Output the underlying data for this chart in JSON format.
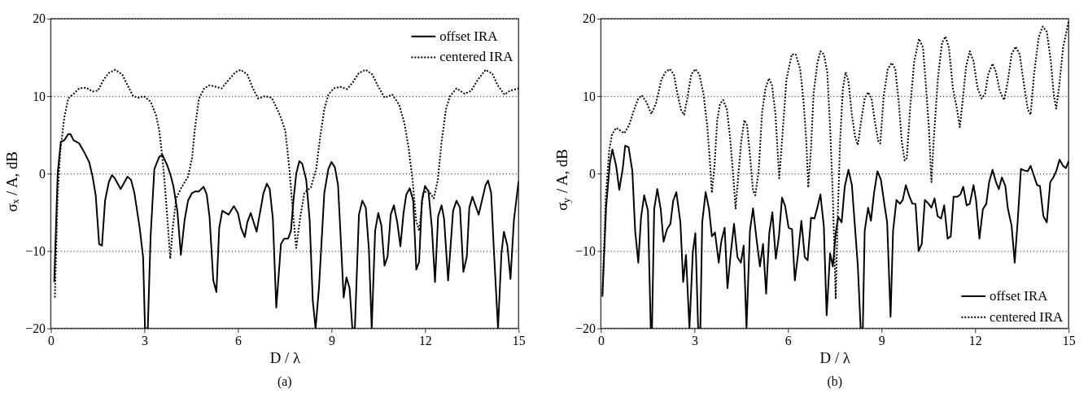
{
  "chart_data": [
    {
      "type": "line",
      "xlabel": "D / λ",
      "ylabel": "σₓ / A, dB",
      "xlim": [
        0,
        15
      ],
      "ylim": [
        -20,
        20
      ],
      "xticks": [
        0,
        3,
        6,
        9,
        12,
        15
      ],
      "yticks": [
        -20,
        -10,
        0,
        10,
        20
      ],
      "grid": "y",
      "legend": "top right",
      "annotations": [
        "(a)"
      ],
      "series": [
        {
          "name": "offset IRA",
          "color": "#000000",
          "line_style": "solid",
          "x": [
            0.11,
            0.22,
            0.32,
            0.43,
            0.56,
            0.63,
            0.73,
            0.91,
            1.08,
            1.23,
            1.34,
            1.44,
            1.55,
            1.64,
            1.74,
            1.86,
            1.96,
            2.05,
            2.24,
            2.46,
            2.57,
            2.68,
            2.85,
            2.96,
            3.02,
            3.11,
            3.2,
            3.32,
            3.48,
            3.58,
            3.74,
            3.84,
            3.93,
            4.06,
            4.17,
            4.29,
            4.4,
            4.53,
            4.64,
            4.75,
            4.9,
            5.0,
            5.09,
            5.21,
            5.31,
            5.4,
            5.5,
            5.7,
            5.87,
            6.0,
            6.1,
            6.22,
            6.3,
            6.41,
            6.6,
            6.82,
            6.93,
            7.02,
            7.12,
            7.23,
            7.38,
            7.48,
            7.61,
            7.7,
            7.78,
            7.87,
            7.97,
            8.06,
            8.19,
            8.3,
            8.4,
            8.49,
            8.6,
            8.77,
            8.9,
            9.0,
            9.11,
            9.21,
            9.31,
            9.39,
            9.48,
            9.58,
            9.67,
            9.75,
            9.88,
            9.99,
            10.1,
            10.2,
            10.29,
            10.4,
            10.5,
            10.6,
            10.7,
            10.8,
            10.9,
            11.0,
            11.11,
            11.21,
            11.31,
            11.4,
            11.51,
            11.62,
            11.72,
            11.81,
            11.9,
            12.0,
            12.11,
            12.22,
            12.32,
            12.42,
            12.53,
            12.61,
            12.74,
            12.9,
            13.01,
            13.12,
            13.23,
            13.34,
            13.42,
            13.52,
            13.72,
            13.94,
            14.02,
            14.12,
            14.21,
            14.34,
            14.45,
            14.53,
            14.64,
            14.74,
            14.85,
            15.0
          ],
          "values": [
            -14,
            0,
            4.1,
            4.3,
            5.1,
            5.1,
            4.3,
            3.9,
            2.7,
            1.5,
            -0.4,
            -2.8,
            -9.1,
            -9.3,
            -3.5,
            -1.1,
            -0.2,
            -0.6,
            -2.0,
            -0.4,
            -0.8,
            -2.5,
            -7.0,
            -10.8,
            -20,
            -20,
            -8.1,
            0.6,
            2.2,
            2.4,
            1.0,
            -0.2,
            -1.6,
            -4.9,
            -10.5,
            -6.0,
            -3.5,
            -2.5,
            -2.3,
            -2.3,
            -1.7,
            -2.7,
            -5.6,
            -13.8,
            -15.3,
            -7.0,
            -4.8,
            -5.3,
            -4.2,
            -5.1,
            -7.0,
            -8.2,
            -6.3,
            -5.1,
            -7.5,
            -2.5,
            -1.3,
            -2.0,
            -5.8,
            -17.3,
            -9.1,
            -8.4,
            -8.4,
            -7.4,
            -3.5,
            0,
            1.6,
            1.3,
            -0.8,
            -6.0,
            -16.4,
            -20,
            -14.7,
            -2.5,
            0.6,
            1.5,
            0.8,
            -1.5,
            -9.4,
            -16.0,
            -13.4,
            -14.8,
            -20,
            -20,
            -5.3,
            -3.5,
            -4.4,
            -9.8,
            -20,
            -7.4,
            -5.1,
            -6.7,
            -11.9,
            -10.7,
            -5.3,
            -4.1,
            -6.3,
            -9.4,
            -5.1,
            -2.7,
            -1.9,
            -3.5,
            -12.4,
            -11.4,
            -3.5,
            -1.6,
            -2.3,
            -7.0,
            -14.0,
            -5.5,
            -4.1,
            -5.8,
            -13.8,
            -4.8,
            -3.5,
            -4.4,
            -12.7,
            -10.7,
            -4.4,
            -3.0,
            -5.3,
            -1.5,
            -0.9,
            -2.5,
            -10.1,
            -20,
            -10.3,
            -7.5,
            -9.3,
            -13.6,
            -6.0,
            -1.0
          ]
        },
        {
          "name": "centered IRA",
          "color": "#000000",
          "line_style": "dotted",
          "x": [
            0.13,
            0.22,
            0.3,
            0.43,
            0.56,
            0.73,
            0.91,
            1.12,
            1.34,
            1.51,
            1.69,
            1.86,
            2.07,
            2.29,
            2.46,
            2.64,
            2.81,
            2.98,
            3.2,
            3.37,
            3.48,
            3.58,
            3.67,
            3.76,
            3.83,
            3.91,
            4.02,
            4.19,
            4.4,
            4.53,
            4.62,
            4.75,
            4.92,
            5.09,
            5.31,
            5.48,
            5.7,
            5.92,
            6.09,
            6.3,
            6.48,
            6.65,
            6.87,
            7.08,
            7.25,
            7.38,
            7.52,
            7.65,
            7.74,
            7.87,
            8.0,
            8.13,
            8.34,
            8.51,
            8.64,
            8.77,
            8.9,
            9.07,
            9.28,
            9.5,
            9.67,
            9.88,
            10.1,
            10.31,
            10.48,
            10.7,
            10.95,
            11.17,
            11.34,
            11.47,
            11.6,
            11.71,
            11.81,
            11.94,
            12.11,
            12.28,
            12.41,
            12.53,
            12.67,
            12.8,
            13.01,
            13.27,
            13.48,
            13.69,
            13.94,
            14.16,
            14.33,
            14.55,
            14.72,
            15.0
          ],
          "values": [
            -16,
            -2.8,
            2.7,
            7.2,
            9.7,
            10.3,
            11.0,
            11.1,
            10.6,
            10.7,
            12.1,
            13.0,
            13.4,
            12.8,
            11.4,
            10.0,
            9.8,
            10.0,
            9.3,
            7.6,
            5.5,
            2.0,
            -2.2,
            -7.0,
            -11.0,
            -7.0,
            -3.2,
            -1.8,
            -0.4,
            2.0,
            5.8,
            9.7,
            11.0,
            11.4,
            11.2,
            11.0,
            12.1,
            13.1,
            13.4,
            12.8,
            11.0,
            9.7,
            10.0,
            9.8,
            8.4,
            7.2,
            5.5,
            0.6,
            -3.9,
            -9.6,
            -5.6,
            -2.5,
            -1.8,
            0.6,
            4.8,
            8.3,
            10.2,
            11.0,
            11.2,
            10.9,
            11.7,
            13.0,
            13.4,
            12.8,
            11.4,
            9.8,
            10.2,
            8.9,
            6.5,
            3.4,
            -0.8,
            -6.0,
            -7.4,
            -2.5,
            -2.2,
            -3.2,
            -0.8,
            4.1,
            8.3,
            10.0,
            11.0,
            10.3,
            10.7,
            12.1,
            13.4,
            12.9,
            11.4,
            10.2,
            10.7,
            11.0
          ]
        }
      ]
    },
    {
      "type": "line",
      "xlabel": "D / λ",
      "ylabel": "σ$_{y}$ / A, dB",
      "xlim": [
        0,
        15
      ],
      "ylim": [
        -20,
        20
      ],
      "xticks": [
        0,
        3,
        6,
        9,
        12,
        15
      ],
      "yticks": [
        -20,
        -10,
        0,
        10,
        20
      ],
      "grid": "y",
      "legend": "bottom right",
      "annotations": [
        "(b)"
      ],
      "series": [
        {
          "name": "offset IRA",
          "color": "#000000",
          "line_style": "solid",
          "x": [
            0.05,
            0.17,
            0.29,
            0.37,
            0.49,
            0.59,
            0.7,
            0.78,
            0.89,
            1.01,
            1.1,
            1.2,
            1.29,
            1.39,
            1.51,
            1.6,
            1.64,
            1.71,
            1.81,
            1.92,
            2.01,
            2.12,
            2.23,
            2.32,
            2.42,
            2.55,
            2.64,
            2.73,
            2.84,
            2.95,
            3.03,
            3.12,
            3.19,
            3.25,
            3.36,
            3.47,
            3.56,
            3.66,
            3.78,
            3.86,
            3.97,
            4.06,
            4.17,
            4.27,
            4.38,
            4.49,
            4.58,
            4.67,
            4.78,
            4.88,
            4.99,
            5.1,
            5.2,
            5.3,
            5.4,
            5.5,
            5.61,
            5.71,
            5.81,
            5.91,
            6.02,
            6.13,
            6.22,
            6.32,
            6.43,
            6.54,
            6.63,
            6.74,
            6.85,
            6.94,
            7.04,
            7.15,
            7.24,
            7.35,
            7.44,
            7.53,
            7.61,
            7.72,
            7.82,
            7.94,
            8.05,
            8.15,
            8.24,
            8.33,
            8.4,
            8.46,
            8.57,
            8.66,
            8.76,
            8.87,
            8.98,
            9.09,
            9.18,
            9.29,
            9.37,
            9.48,
            9.59,
            9.68,
            9.78,
            9.88,
            9.99,
            10.09,
            10.19,
            10.29,
            10.39,
            10.51,
            10.6,
            10.7,
            10.8,
            10.91,
            11.01,
            11.12,
            11.22,
            11.31,
            11.42,
            11.53,
            11.62,
            11.73,
            11.83,
            11.95,
            12.03,
            12.14,
            12.25,
            12.36,
            12.45,
            12.56,
            12.67,
            12.76,
            12.86,
            12.97,
            13.05,
            13.17,
            13.27,
            13.37,
            13.47,
            13.58,
            13.69,
            13.78,
            13.88,
            13.99,
            14.08,
            14.19,
            14.3,
            14.41,
            14.51,
            14.6,
            14.71,
            14.82,
            14.91,
            15.0
          ],
          "values": [
            -15.7,
            -4.2,
            1.4,
            3.1,
            1.0,
            -2.1,
            0.6,
            3.6,
            3.4,
            0.3,
            -7.4,
            -11.5,
            -5.6,
            -2.8,
            -4.8,
            -20,
            -20,
            -4.6,
            -2.0,
            -4.6,
            -8.8,
            -7.2,
            -6.5,
            -3.5,
            -2.4,
            -6.3,
            -14.0,
            -10.5,
            -20,
            -10.1,
            -7.7,
            -20,
            -20,
            -6.3,
            -2.4,
            -4.6,
            -8.1,
            -7.6,
            -11.5,
            -8.8,
            -7.0,
            -14.8,
            -10.1,
            -6.5,
            -10.8,
            -11.5,
            -9.3,
            -20,
            -7.4,
            -4.5,
            -8.4,
            -12.0,
            -9.1,
            -15.5,
            -7.7,
            -5.0,
            -11.0,
            -8.1,
            -3.1,
            -4.2,
            -7.0,
            -7.2,
            -13.8,
            -10.5,
            -6.1,
            -10.8,
            -11.2,
            -5.7,
            -5.8,
            -4.4,
            -2.7,
            -6.8,
            -18.3,
            -10.3,
            -12.0,
            -7.7,
            -5.6,
            -6.3,
            -1.7,
            0.5,
            -1.5,
            -7.0,
            -11.9,
            -20,
            -20,
            -7.4,
            -4.4,
            -6.1,
            -2.5,
            0.3,
            -0.8,
            -3.9,
            -6.3,
            -18.5,
            -7.4,
            -3.4,
            -3.9,
            -3.4,
            -1.5,
            -2.8,
            -3.9,
            -3.9,
            -10.0,
            -9.1,
            -3.4,
            -3.9,
            -4.4,
            -3.2,
            -5.5,
            -5.8,
            -4.1,
            -8.4,
            -8.1,
            -3.0,
            -3.0,
            -2.7,
            -1.7,
            -4.1,
            -3.9,
            -1.5,
            -3.4,
            -8.4,
            -4.6,
            -3.9,
            -1.1,
            0.5,
            -1.1,
            -2.0,
            -0.5,
            -1.6,
            -4.5,
            -6.7,
            -11.5,
            -5.9,
            0.6,
            0.4,
            0.3,
            1.0,
            -0.2,
            -1.5,
            -1.6,
            -5.5,
            -6.3,
            -1.1,
            -0.5,
            0.3,
            1.8,
            1.0,
            0.7,
            1.6
          ]
        },
        {
          "name": "centered IRA",
          "color": "#000000",
          "line_style": "dotted",
          "x": [
            0.05,
            0.16,
            0.27,
            0.36,
            0.49,
            0.64,
            0.75,
            0.9,
            1.07,
            1.2,
            1.31,
            1.45,
            1.62,
            1.77,
            1.94,
            2.07,
            2.21,
            2.34,
            2.47,
            2.58,
            2.67,
            2.77,
            2.9,
            3.03,
            3.16,
            3.29,
            3.41,
            3.49,
            3.56,
            3.65,
            3.73,
            3.82,
            3.92,
            4.04,
            4.14,
            4.24,
            4.32,
            4.41,
            4.5,
            4.6,
            4.69,
            4.79,
            4.88,
            4.95,
            5.06,
            5.17,
            5.28,
            5.39,
            5.49,
            5.6,
            5.72,
            5.82,
            5.95,
            6.12,
            6.25,
            6.39,
            6.5,
            6.59,
            6.65,
            6.74,
            6.82,
            6.94,
            7.04,
            7.15,
            7.26,
            7.35,
            7.44,
            7.53,
            7.59,
            7.67,
            7.76,
            7.85,
            7.94,
            8.05,
            8.15,
            8.24,
            8.35,
            8.46,
            8.57,
            8.68,
            8.78,
            8.9,
            8.96,
            9.07,
            9.2,
            9.33,
            9.44,
            9.55,
            9.65,
            9.74,
            9.81,
            9.92,
            10.05,
            10.2,
            10.33,
            10.43,
            10.52,
            10.6,
            10.68,
            10.81,
            10.94,
            11.05,
            11.16,
            11.29,
            11.42,
            11.51,
            11.6,
            11.71,
            11.83,
            11.95,
            12.08,
            12.21,
            12.32,
            12.42,
            12.56,
            12.67,
            12.79,
            12.93,
            13.04,
            13.17,
            13.3,
            13.43,
            13.56,
            13.69,
            13.78,
            13.89,
            14.04,
            14.17,
            14.3,
            14.43,
            14.52,
            14.6,
            14.69,
            14.82,
            15.0
          ],
          "values": [
            -15.9,
            -2.8,
            3.1,
            5.1,
            5.9,
            5.5,
            5.2,
            6.2,
            8.3,
            9.7,
            10.1,
            9.3,
            7.7,
            9.1,
            12.1,
            13.1,
            13.5,
            12.8,
            10.0,
            8.1,
            7.6,
            9.7,
            12.8,
            13.5,
            12.8,
            10.3,
            6.2,
            2.0,
            -2.5,
            1.3,
            6.9,
            9.0,
            9.5,
            8.3,
            4.8,
            -0.1,
            -4.5,
            -0.1,
            4.1,
            6.9,
            6.2,
            2.0,
            -2.2,
            -2.8,
            0.3,
            7.9,
            11.0,
            12.3,
            11.4,
            7.6,
            -0.6,
            4.8,
            12.1,
            15.4,
            15.4,
            13.5,
            9.3,
            4.1,
            -1.8,
            3.4,
            10.3,
            14.2,
            15.8,
            15.4,
            13.1,
            6.0,
            -3.0,
            -16.2,
            -6.3,
            4.1,
            11.0,
            13.1,
            11.9,
            7.6,
            4.8,
            3.7,
            6.9,
            9.7,
            10.5,
            9.7,
            6.9,
            4.1,
            3.9,
            10.0,
            13.5,
            14.3,
            13.5,
            9.3,
            4.1,
            1.7,
            2.0,
            8.6,
            14.5,
            17.4,
            16.3,
            11.0,
            5.8,
            -1.1,
            4.8,
            12.4,
            16.9,
            17.7,
            16.3,
            11.0,
            8.3,
            6.0,
            9.3,
            13.8,
            15.8,
            14.5,
            11.0,
            9.7,
            10.3,
            12.8,
            14.2,
            13.1,
            10.7,
            9.5,
            11.7,
            15.4,
            16.4,
            15.4,
            11.7,
            8.3,
            7.6,
            12.8,
            17.6,
            19.0,
            18.3,
            14.5,
            10.3,
            8.4,
            11.0,
            16.2,
            19.7
          ]
        }
      ]
    }
  ]
}
